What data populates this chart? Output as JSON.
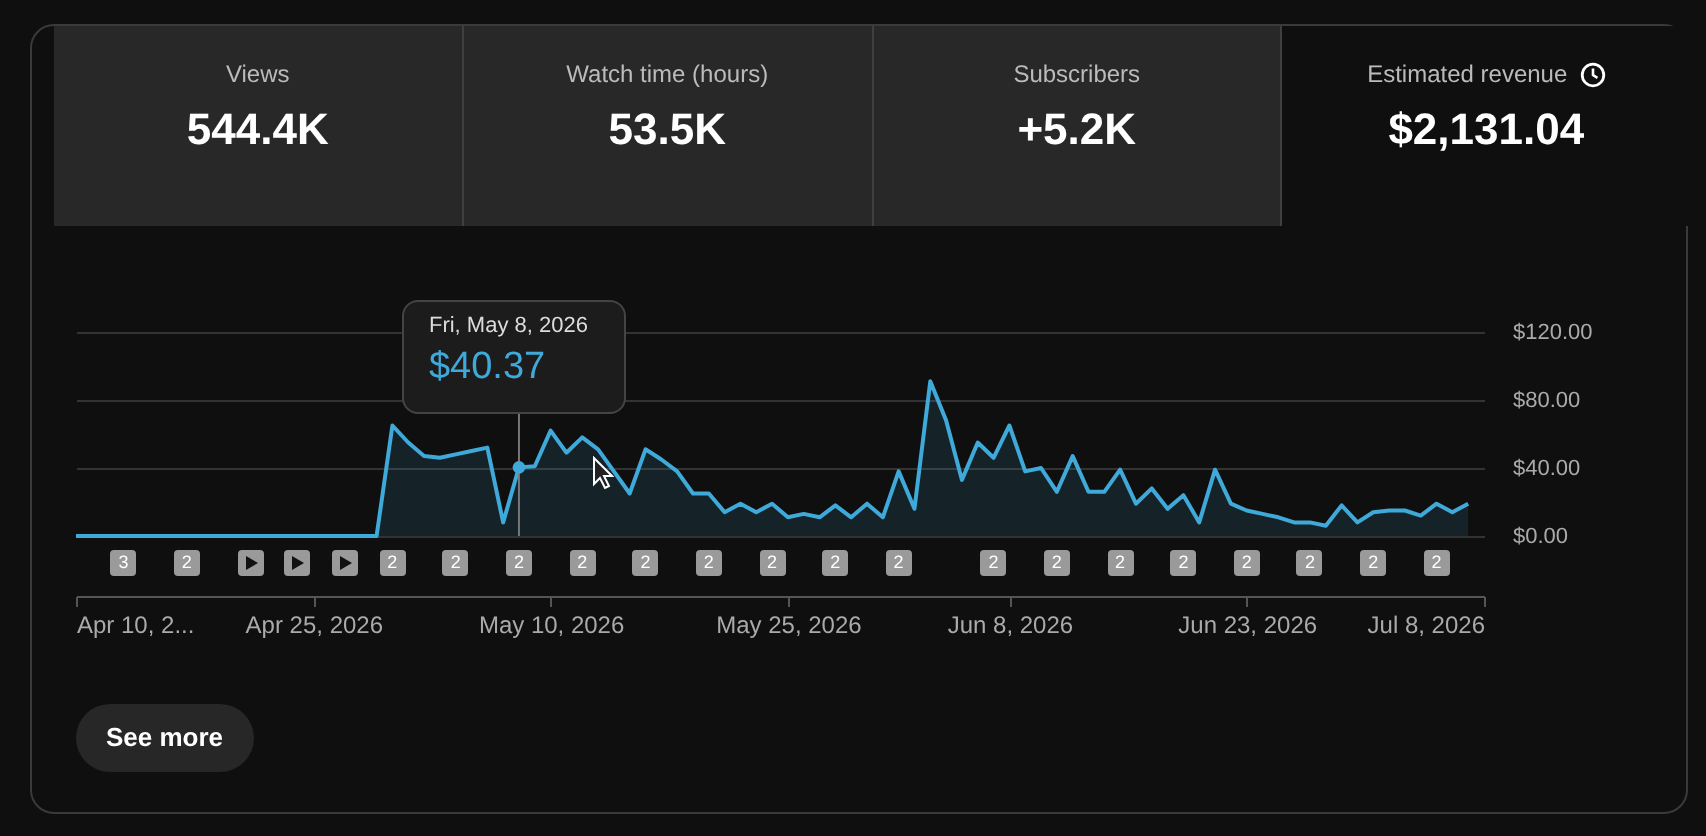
{
  "chart_data": [
    {
      "type": "other",
      "categories": [
        "Views",
        "Watch time (hours)",
        "Subscribers",
        "Estimated revenue"
      ],
      "value_labels": [
        "544.4K",
        "53.5K",
        "+5.2K",
        "$2,131.04"
      ]
    },
    {
      "type": "area",
      "x": [
        "2026-04-10",
        "2026-04-29",
        "2026-04-30",
        "2026-05-01",
        "2026-05-02",
        "2026-05-03",
        "2026-05-04",
        "2026-05-05",
        "2026-05-06",
        "2026-05-07",
        "2026-05-08",
        "2026-05-09",
        "2026-05-10",
        "2026-05-11",
        "2026-05-12",
        "2026-05-13",
        "2026-05-14",
        "2026-05-15",
        "2026-05-16",
        "2026-05-17",
        "2026-05-18",
        "2026-05-19",
        "2026-05-20",
        "2026-05-21",
        "2026-05-22",
        "2026-05-23",
        "2026-05-24",
        "2026-05-25",
        "2026-05-26",
        "2026-05-27",
        "2026-05-28",
        "2026-05-29",
        "2026-05-30",
        "2026-05-31",
        "2026-06-01",
        "2026-06-02",
        "2026-06-03",
        "2026-06-04",
        "2026-06-05",
        "2026-06-06",
        "2026-06-07",
        "2026-06-08",
        "2026-06-09",
        "2026-06-10",
        "2026-06-11",
        "2026-06-12",
        "2026-06-13",
        "2026-06-14",
        "2026-06-15",
        "2026-06-16",
        "2026-06-17",
        "2026-06-18",
        "2026-06-19",
        "2026-06-20",
        "2026-06-21",
        "2026-06-22",
        "2026-06-23",
        "2026-06-24",
        "2026-06-25",
        "2026-06-26",
        "2026-06-27",
        "2026-06-28",
        "2026-06-29",
        "2026-06-30",
        "2026-07-01",
        "2026-07-02",
        "2026-07-03",
        "2026-07-04",
        "2026-07-05",
        "2026-07-06",
        "2026-07-07"
      ],
      "series": [
        {
          "color": "#3fa9d9",
          "values": [
            0,
            0,
            65,
            55,
            47,
            46,
            48,
            50,
            52,
            8,
            40.37,
            41,
            62,
            49,
            58,
            51,
            38,
            25,
            51,
            45,
            38,
            25,
            25,
            14,
            19,
            14,
            19,
            11,
            13,
            11,
            18,
            11,
            19,
            11,
            38,
            16,
            91,
            68,
            33,
            55,
            46,
            65,
            38,
            40,
            26,
            47,
            26,
            26,
            39,
            19,
            28,
            16,
            24,
            8,
            39,
            19,
            15,
            13,
            11,
            8,
            8,
            6,
            18,
            8,
            14,
            15,
            15,
            12,
            19,
            14,
            19
          ]
        }
      ],
      "xlim": [
        "2026-04-10",
        "2026-07-08"
      ],
      "xticks": [
        {
          "value": "2026-04-10",
          "label": "Apr 10, 2..."
        },
        {
          "value": "2026-04-25",
          "label": "Apr 25, 2026"
        },
        {
          "value": "2026-05-10",
          "label": "May 10, 2026"
        },
        {
          "value": "2026-05-25",
          "label": "May 25, 2026"
        },
        {
          "value": "2026-06-08",
          "label": "Jun 8, 2026"
        },
        {
          "value": "2026-06-23",
          "label": "Jun 23, 2026"
        },
        {
          "value": "2026-07-08",
          "label": "Jul 8, 2026"
        }
      ],
      "ylim": [
        0,
        120
      ],
      "yticks": [
        {
          "value": 0,
          "label": "$0.00"
        },
        {
          "value": 40,
          "label": "$40.00"
        },
        {
          "value": 80,
          "label": "$80.00"
        },
        {
          "value": 120,
          "label": "$120.00"
        }
      ],
      "grid": "y",
      "marker": "none",
      "line_style": "solid",
      "annotations": [
        "Fri, May 8, 2026",
        {
          "text": "$40.37",
          "x": "2026-05-08",
          "y": 40.37
        },
        "3",
        "2",
        "2",
        "2",
        "2",
        "2",
        "2",
        "2",
        "2",
        "2",
        "2",
        "2",
        "2",
        "2",
        "2",
        "2",
        "2",
        "2",
        "2",
        "See more"
      ]
    }
  ]
}
